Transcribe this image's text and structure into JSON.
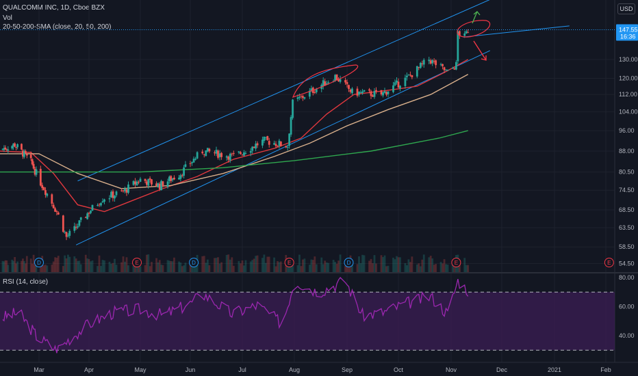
{
  "header": {
    "symbol": "QUALCOMM INC, 1D, Cboe BZX",
    "vol_label": "Vol",
    "sma_label": "20-50-200-SMA (close, 20, 50, 200)",
    "currency_button": "USD",
    "rsi_label": "RSI (14, close)"
  },
  "price_badges": {
    "last_price": "147.55",
    "countdown": "16:36"
  },
  "colors": {
    "background": "#131722",
    "grid": "#1e222d",
    "up": "#26a69a",
    "down": "#ef5350",
    "sma20": "#e0383e",
    "sma50": "#d9b08c",
    "sma200": "#2fa84f",
    "channel": "#2196f3",
    "rsi_line": "#9c27b0",
    "rsi_band": "#3b1e54",
    "annotation": "#f23645",
    "arrow_up": "#4caf50",
    "price_badge": "#2196f3"
  },
  "chart_data": [
    {
      "type": "candlestick",
      "title": "QUALCOMM INC, 1D, Cboe BZX",
      "y_scale": "log",
      "ylim": [
        52.5,
        172
      ],
      "y_ticks": [
        "54.50",
        "58.50",
        "63.50",
        "68.50",
        "74.50",
        "80.50",
        "88.00",
        "96.00",
        "104.00",
        "112.00",
        "120.00",
        "130.00",
        "147.55"
      ],
      "x_ticks": [
        "Mar",
        "Apr",
        "May",
        "Jun",
        "Jul",
        "Aug",
        "Sep",
        "Oct",
        "Nov",
        "Dec",
        "2021",
        "Feb"
      ],
      "last_price": 147.55,
      "price_path": [
        {
          "date": "2020-02-01",
          "close": 88.5
        },
        {
          "date": "2020-02-12",
          "close": 90.5
        },
        {
          "date": "2020-02-24",
          "close": 84
        },
        {
          "date": "2020-03-02",
          "close": 77
        },
        {
          "date": "2020-03-12",
          "close": 68
        },
        {
          "date": "2020-03-18",
          "close": 61
        },
        {
          "date": "2020-03-23",
          "close": 63
        },
        {
          "date": "2020-04-01",
          "close": 68
        },
        {
          "date": "2020-04-09",
          "close": 72
        },
        {
          "date": "2020-04-21",
          "close": 74
        },
        {
          "date": "2020-05-01",
          "close": 78
        },
        {
          "date": "2020-05-13",
          "close": 76
        },
        {
          "date": "2020-05-26",
          "close": 80
        },
        {
          "date": "2020-06-08",
          "close": 88
        },
        {
          "date": "2020-06-26",
          "close": 86
        },
        {
          "date": "2020-07-14",
          "close": 92
        },
        {
          "date": "2020-07-28",
          "close": 90
        },
        {
          "date": "2020-07-31",
          "close": 108
        },
        {
          "date": "2020-08-12",
          "close": 114
        },
        {
          "date": "2020-08-25",
          "close": 121
        },
        {
          "date": "2020-09-04",
          "close": 113
        },
        {
          "date": "2020-09-21",
          "close": 112
        },
        {
          "date": "2020-10-06",
          "close": 120
        },
        {
          "date": "2020-10-19",
          "close": 130
        },
        {
          "date": "2020-10-30",
          "close": 123
        },
        {
          "date": "2020-11-04",
          "close": 127
        },
        {
          "date": "2020-11-05",
          "close": 146
        },
        {
          "date": "2020-11-09",
          "close": 143
        },
        {
          "date": "2020-11-11",
          "close": 147.55
        }
      ],
      "sma": [
        {
          "name": "SMA 20",
          "color": "#e0383e",
          "points": [
            {
              "date": "2020-02-01",
              "value": 88
            },
            {
              "date": "2020-02-24",
              "value": 87.5
            },
            {
              "date": "2020-03-10",
              "value": 80
            },
            {
              "date": "2020-03-25",
              "value": 70
            },
            {
              "date": "2020-04-10",
              "value": 68
            },
            {
              "date": "2020-04-25",
              "value": 71
            },
            {
              "date": "2020-05-15",
              "value": 75
            },
            {
              "date": "2020-06-05",
              "value": 79
            },
            {
              "date": "2020-06-26",
              "value": 85
            },
            {
              "date": "2020-07-20",
              "value": 89
            },
            {
              "date": "2020-08-05",
              "value": 93
            },
            {
              "date": "2020-08-20",
              "value": 103
            },
            {
              "date": "2020-09-05",
              "value": 112
            },
            {
              "date": "2020-09-25",
              "value": 114
            },
            {
              "date": "2020-10-12",
              "value": 116
            },
            {
              "date": "2020-10-28",
              "value": 123
            },
            {
              "date": "2020-11-11",
              "value": 130
            }
          ]
        },
        {
          "name": "SMA 50",
          "color": "#d9b08c",
          "points": [
            {
              "date": "2020-02-01",
              "value": 87
            },
            {
              "date": "2020-03-01",
              "value": 87
            },
            {
              "date": "2020-03-25",
              "value": 80
            },
            {
              "date": "2020-04-20",
              "value": 75
            },
            {
              "date": "2020-05-20",
              "value": 76
            },
            {
              "date": "2020-06-20",
              "value": 80
            },
            {
              "date": "2020-07-20",
              "value": 86
            },
            {
              "date": "2020-08-10",
              "value": 91
            },
            {
              "date": "2020-09-01",
              "value": 98
            },
            {
              "date": "2020-09-25",
              "value": 105
            },
            {
              "date": "2020-10-20",
              "value": 112
            },
            {
              "date": "2020-11-11",
              "value": 122
            }
          ]
        },
        {
          "name": "SMA 200",
          "color": "#2fa84f",
          "points": [
            {
              "date": "2020-02-01",
              "value": 80.5
            },
            {
              "date": "2020-03-20",
              "value": 80.5
            },
            {
              "date": "2020-05-01",
              "value": 80.5
            },
            {
              "date": "2020-06-20",
              "value": 82
            },
            {
              "date": "2020-08-01",
              "value": 84.5
            },
            {
              "date": "2020-09-15",
              "value": 88
            },
            {
              "date": "2020-10-25",
              "value": 93
            },
            {
              "date": "2020-11-11",
              "value": 96
            }
          ]
        }
      ],
      "rsi": {
        "name": "RSI (14, close)",
        "ylim": [
          27,
          84
        ],
        "y_ticks": [
          80,
          60,
          40
        ],
        "bands": [
          70,
          30
        ],
        "points": [
          {
            "date": "2020-02-01",
            "value": 52
          },
          {
            "date": "2020-02-15",
            "value": 56
          },
          {
            "date": "2020-02-28",
            "value": 40
          },
          {
            "date": "2020-03-12",
            "value": 30
          },
          {
            "date": "2020-03-20",
            "value": 38
          },
          {
            "date": "2020-04-01",
            "value": 48
          },
          {
            "date": "2020-04-15",
            "value": 56
          },
          {
            "date": "2020-05-01",
            "value": 58
          },
          {
            "date": "2020-05-15",
            "value": 54
          },
          {
            "date": "2020-06-01",
            "value": 62
          },
          {
            "date": "2020-06-08",
            "value": 69
          },
          {
            "date": "2020-06-25",
            "value": 55
          },
          {
            "date": "2020-07-10",
            "value": 61
          },
          {
            "date": "2020-07-25",
            "value": 48
          },
          {
            "date": "2020-08-01",
            "value": 78
          },
          {
            "date": "2020-08-15",
            "value": 70
          },
          {
            "date": "2020-08-31",
            "value": 78
          },
          {
            "date": "2020-09-10",
            "value": 54
          },
          {
            "date": "2020-09-22",
            "value": 56
          },
          {
            "date": "2020-10-05",
            "value": 62
          },
          {
            "date": "2020-10-20",
            "value": 67
          },
          {
            "date": "2020-10-30",
            "value": 55
          },
          {
            "date": "2020-11-05",
            "value": 78
          },
          {
            "date": "2020-11-11",
            "value": 71
          }
        ]
      },
      "channel": {
        "upper": [
          {
            "date": "2020-03-25",
            "value": 77.5
          },
          {
            "date": "2020-11-30",
            "value": 171
          }
        ],
        "lower": [
          {
            "date": "2020-03-24",
            "value": 59
          },
          {
            "date": "2020-11-24",
            "value": 135
          }
        ],
        "parallel_top": [
          {
            "date": "2020-11-08",
            "value": 143
          },
          {
            "date": "2021-01-10",
            "value": 150
          }
        ]
      },
      "events": [
        {
          "label": "D",
          "date": "2020-03-01"
        },
        {
          "label": "E",
          "date": "2020-04-29"
        },
        {
          "label": "D",
          "date": "2020-06-03"
        },
        {
          "label": "E",
          "date": "2020-07-29"
        },
        {
          "label": "D",
          "date": "2020-09-02"
        },
        {
          "label": "E",
          "date": "2020-11-04"
        },
        {
          "label": "E",
          "date": "2021-02-03"
        }
      ]
    }
  ]
}
